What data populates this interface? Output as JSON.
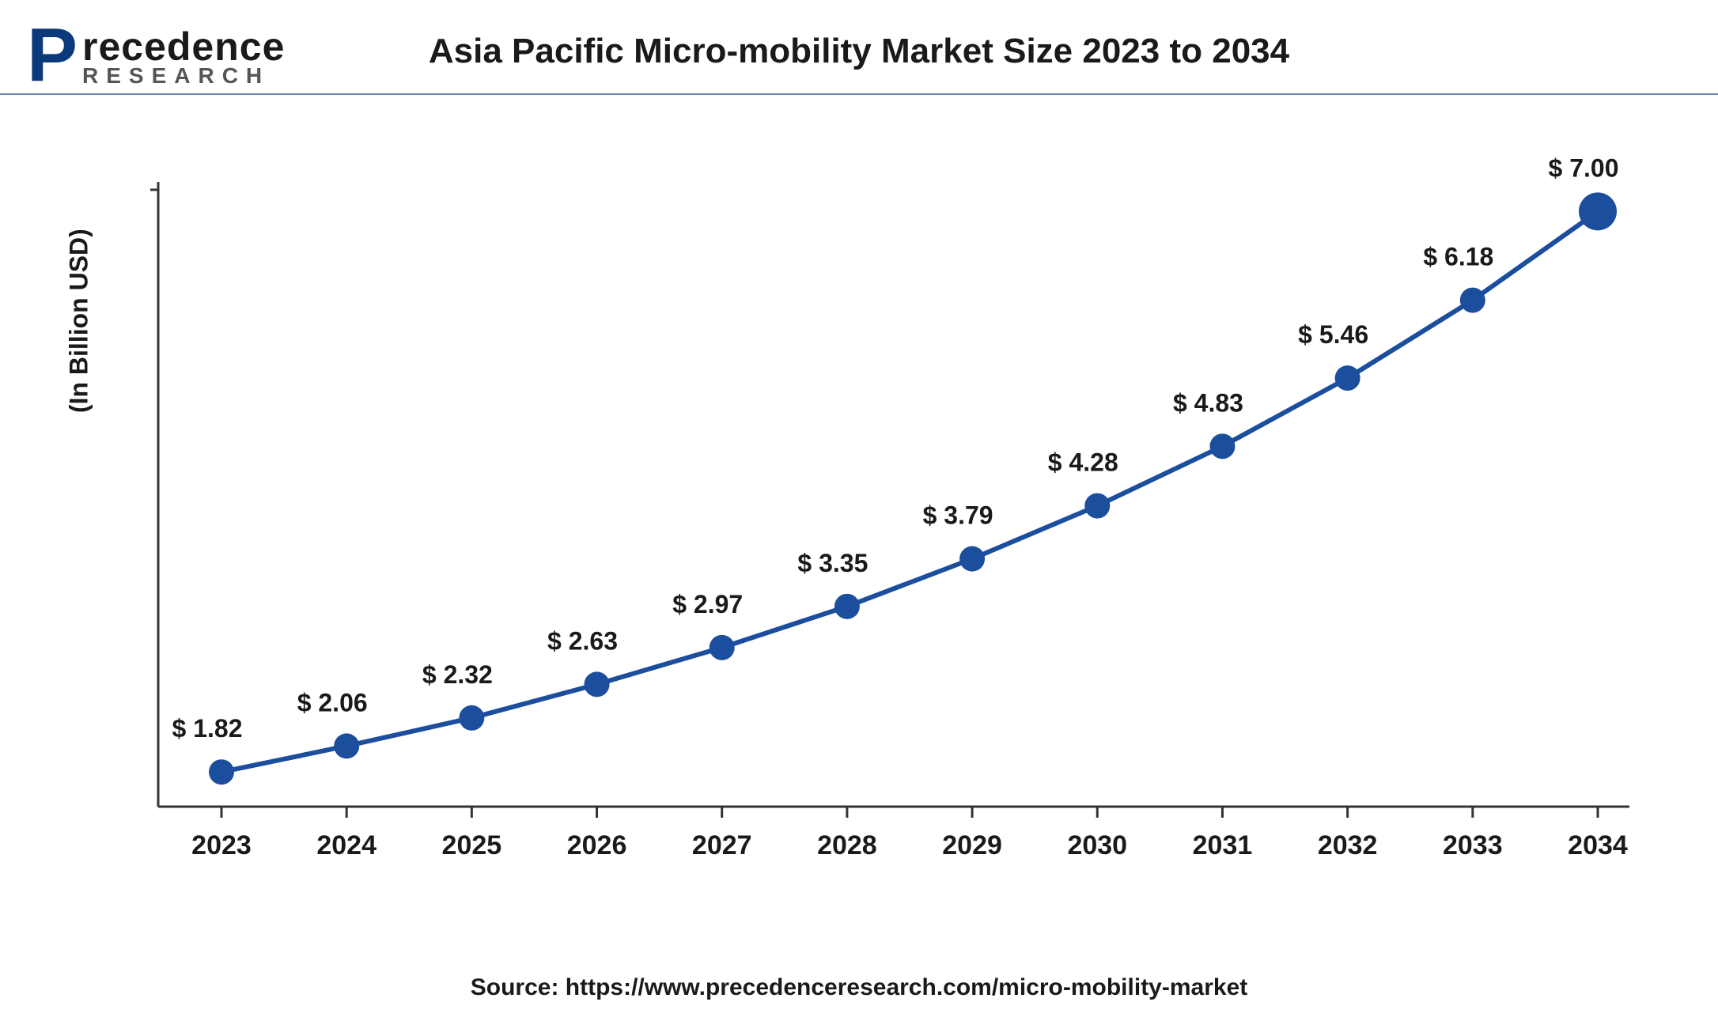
{
  "logo": {
    "p_glyph": "P",
    "name_html": "recedence",
    "sub": "RESEARCH"
  },
  "title": "Asia Pacific Micro-mobility Market Size 2023 to 2034",
  "chart": {
    "type": "line",
    "y_axis_label": "(In Billion USD)",
    "line_color": "#1c4e9e",
    "marker_color": "#1c4e9e",
    "marker_radius": 16,
    "last_marker_radius": 24,
    "line_width": 6,
    "background_color": "#ffffff",
    "axis_color": "#333333",
    "label_fontsize": 32,
    "tick_fontsize": 34,
    "ylim": [
      1.5,
      7.2
    ],
    "categories": [
      "2023",
      "2024",
      "2025",
      "2026",
      "2027",
      "2028",
      "2029",
      "2030",
      "2031",
      "2032",
      "2033",
      "2034"
    ],
    "values": [
      1.82,
      2.06,
      2.32,
      2.63,
      2.97,
      3.35,
      3.79,
      4.28,
      4.83,
      5.46,
      6.18,
      7.0
    ],
    "data_labels": [
      "$ 1.82",
      "$ 2.06",
      "$ 2.32",
      "$ 2.63",
      "$ 2.97",
      "$ 3.35",
      "$ 3.79",
      "$ 4.28",
      "$ 4.83",
      "$ 5.46",
      "$ 6.18",
      "$ 7.00"
    ]
  },
  "source": "Source: https://www.precedenceresearch.com/micro-mobility-market"
}
